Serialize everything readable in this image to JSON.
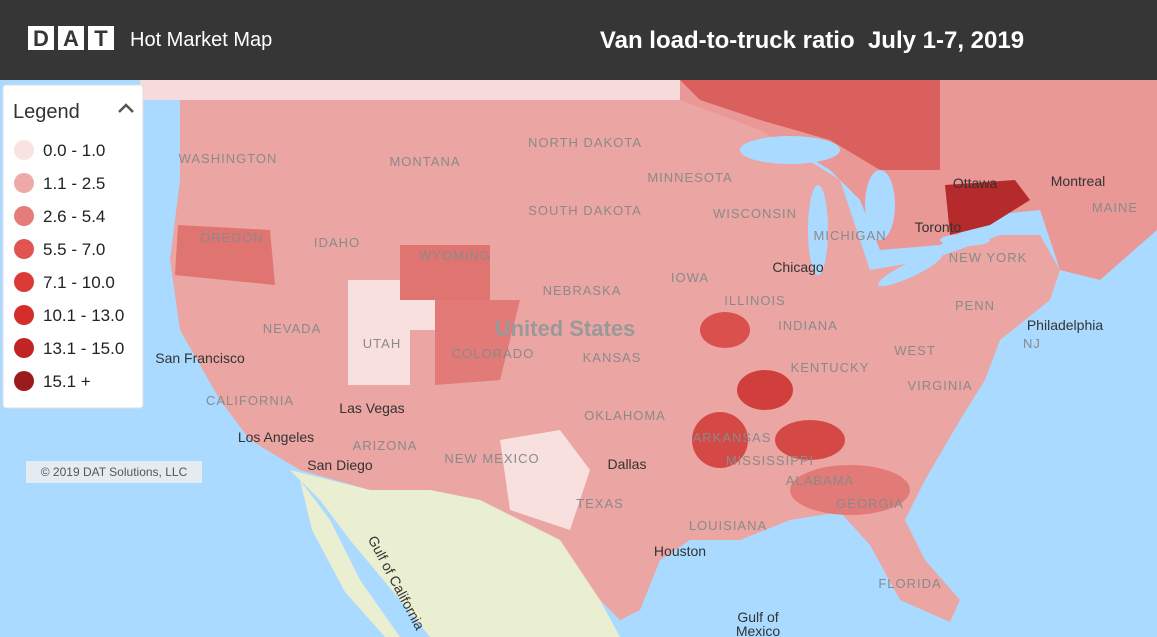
{
  "header": {
    "logo": "DAT",
    "app_title": "Hot Market Map",
    "map_title": "Van load-to-truck ratio  July 1-7, 2019"
  },
  "legend": {
    "title": "Legend",
    "items": [
      {
        "label": "0.0 - 1.0",
        "color": "#f8e3e1"
      },
      {
        "label": "1.1 - 2.5",
        "color": "#eeaaa8"
      },
      {
        "label": "2.6 - 5.4",
        "color": "#e47c7a"
      },
      {
        "label": "5.5 - 7.0",
        "color": "#e05552"
      },
      {
        "label": "7.1 - 10.0",
        "color": "#dc3a36"
      },
      {
        "label": "10.1 - 13.0",
        "color": "#d52d2a"
      },
      {
        "label": "13.1 - 15.0",
        "color": "#c02425"
      },
      {
        "label": "15.1 +",
        "color": "#9b1b1c"
      }
    ]
  },
  "map_labels": [
    "WASHINGTON",
    "MONTANA",
    "NORTH DAKOTA",
    "SOUTH DAKOTA",
    "OREGON",
    "IDAHO",
    "WYOMING",
    "NEBRASKA",
    "United States",
    "NEVADA",
    "UTAH",
    "COLORADO",
    "KANSAS",
    "San Francisco",
    "CALIFORNIA",
    "Las Vegas",
    "Los Angeles",
    "San Diego",
    "ARIZONA",
    "NEW MEXICO",
    "OKLAHOMA",
    "Dallas",
    "TEXAS",
    "Houston",
    "ARKANSAS",
    "MISSISSIPPI",
    "ALABAMA",
    "GEORGIA",
    "LOUISIANA",
    "FLORIDA",
    "Chicago",
    "Toronto",
    "Ottawa",
    "Montreal",
    "MAINE",
    "NEW YORK",
    "Philadelphia",
    "NJ",
    "VIRGINIA",
    "WEST",
    "KENTUCKY",
    "INDIANA",
    "ILLINOIS",
    "IOWA",
    "WISCONSIN",
    "MICHIGAN",
    "MINNESOTA",
    "PENN",
    "Gulf of",
    "Mexico",
    "Gulf of California"
  ],
  "copyright": "© 2019 DAT Solutions, LLC"
}
